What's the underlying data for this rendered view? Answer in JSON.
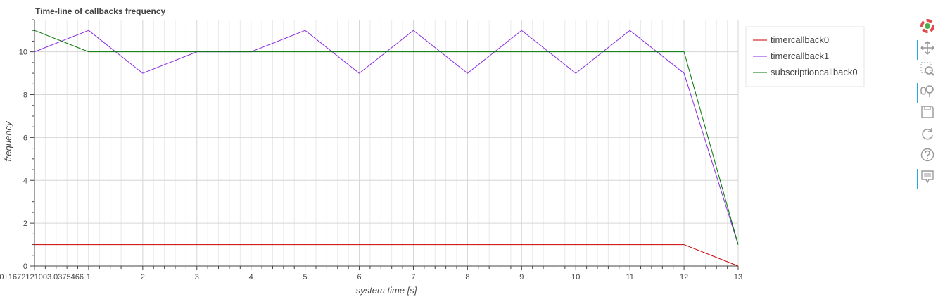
{
  "chart_data": {
    "type": "line",
    "title": "Time-line of callbacks frequency",
    "xlabel": "system time [s]",
    "ylabel": "frequency",
    "x_tick_labels": [
      "0+1672121003.0375466",
      "1",
      "2",
      "3",
      "4",
      "5",
      "6",
      "7",
      "8",
      "9",
      "10",
      "11",
      "12",
      "13"
    ],
    "y_tick_labels": [
      "0",
      "2",
      "4",
      "6",
      "8",
      "10"
    ],
    "xlim": [
      0,
      13
    ],
    "ylim": [
      0,
      11.5
    ],
    "grid": true,
    "legend_position": "right",
    "x": [
      0,
      1,
      2,
      3,
      4,
      5,
      6,
      7,
      8,
      9,
      10,
      11,
      12,
      13
    ],
    "series": [
      {
        "name": "timercallback0",
        "color": "#cc0000",
        "values": [
          1,
          1,
          1,
          1,
          1,
          1,
          1,
          1,
          1,
          1,
          1,
          1,
          1,
          0
        ]
      },
      {
        "name": "timercallback1",
        "color": "#8a2be2",
        "values": [
          10,
          11,
          9,
          10,
          10,
          11,
          9,
          11,
          9,
          11,
          9,
          11,
          9,
          1
        ]
      },
      {
        "name": "subscriptioncallback0",
        "color": "#007700",
        "values": [
          11,
          10,
          10,
          10,
          10,
          10,
          10,
          10,
          10,
          10,
          10,
          10,
          10,
          1
        ]
      }
    ]
  },
  "toolbar": {
    "tools": [
      {
        "name": "bokeh-logo-icon",
        "active": false
      },
      {
        "name": "pan-icon",
        "active": true
      },
      {
        "name": "box-zoom-icon",
        "active": false
      },
      {
        "name": "wheel-zoom-icon",
        "active": true
      },
      {
        "name": "save-icon",
        "active": false
      },
      {
        "name": "reset-icon",
        "active": false
      },
      {
        "name": "help-icon",
        "active": false
      },
      {
        "name": "hover-icon",
        "active": true
      }
    ]
  }
}
